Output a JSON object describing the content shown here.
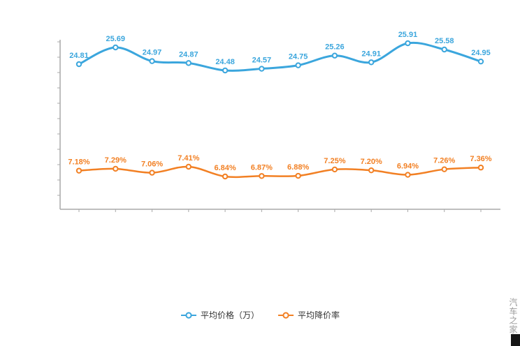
{
  "chart_data": {
    "type": "line",
    "x_count": 12,
    "grid": false,
    "legend_position": "bottom",
    "axis_color": "#a8a8a8",
    "series": [
      {
        "name": "平均价格（万）",
        "color": "#3ba6dd",
        "values": [
          24.81,
          25.69,
          24.97,
          24.87,
          24.48,
          24.57,
          24.75,
          25.26,
          24.91,
          25.91,
          25.58,
          24.95
        ],
        "labels": [
          "24.81",
          "25.69",
          "24.97",
          "24.87",
          "24.48",
          "24.57",
          "24.75",
          "25.26",
          "24.91",
          "25.91",
          "25.58",
          "24.95"
        ]
      },
      {
        "name": "平均降价率",
        "color": "#f28024",
        "values": [
          7.18,
          7.29,
          7.06,
          7.41,
          6.84,
          6.87,
          6.88,
          7.25,
          7.2,
          6.94,
          7.26,
          7.36
        ],
        "labels": [
          "7.18%",
          "7.29%",
          "7.06%",
          "7.41%",
          "6.84%",
          "6.87%",
          "6.88%",
          "7.25%",
          "7.20%",
          "6.94%",
          "7.26%",
          "7.36%"
        ]
      }
    ]
  },
  "watermark": "汽车之家"
}
